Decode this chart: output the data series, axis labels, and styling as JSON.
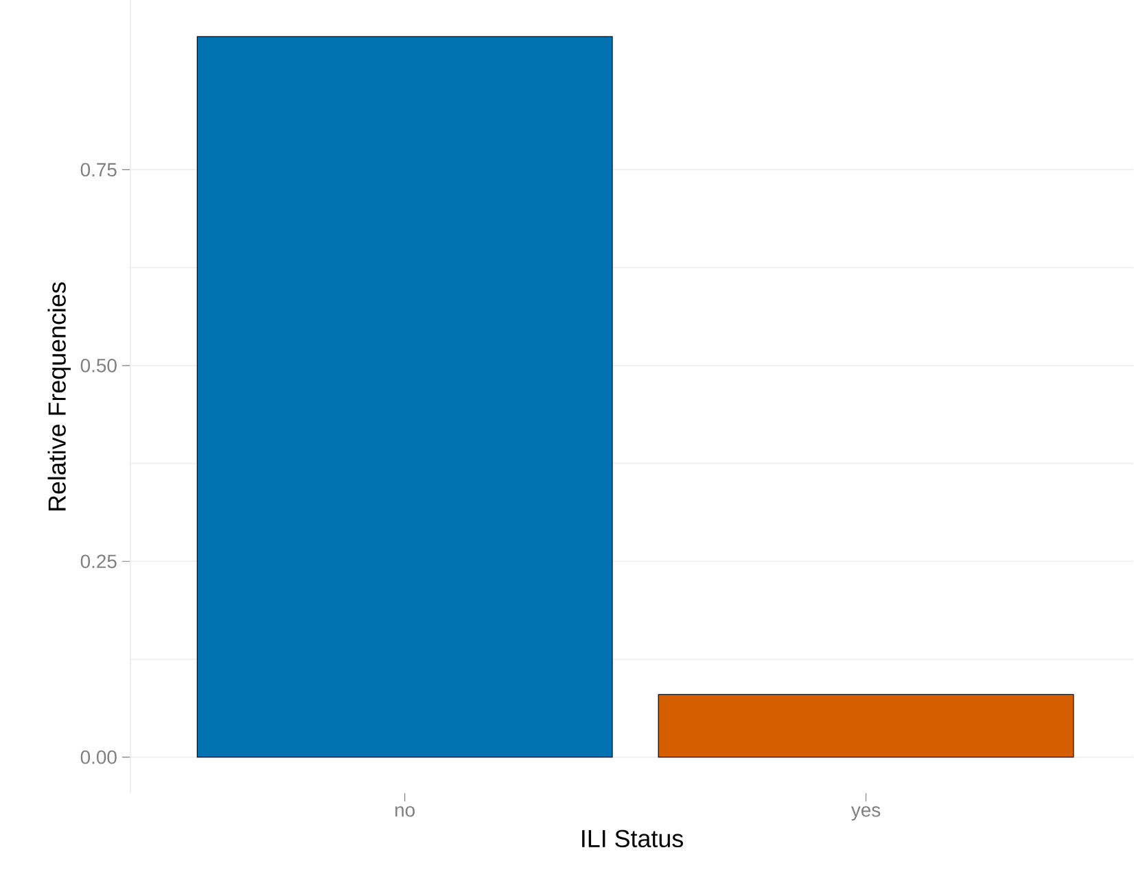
{
  "chart_data": {
    "type": "bar",
    "xlabel": "ILI Status",
    "ylabel": "Relative Frequencies",
    "categories": [
      "no",
      "yes"
    ],
    "values": [
      0.92,
      0.08
    ],
    "colors": [
      "#0072b2",
      "#d55e00"
    ],
    "ylim": [
      -0.046,
      0.966
    ],
    "yticks": [
      {
        "value": 0,
        "label": "0.00"
      },
      {
        "value": 0.25,
        "label": "0.25"
      },
      {
        "value": 0.5,
        "label": "0.50"
      },
      {
        "value": 0.75,
        "label": "0.75"
      }
    ],
    "grid": "y"
  }
}
